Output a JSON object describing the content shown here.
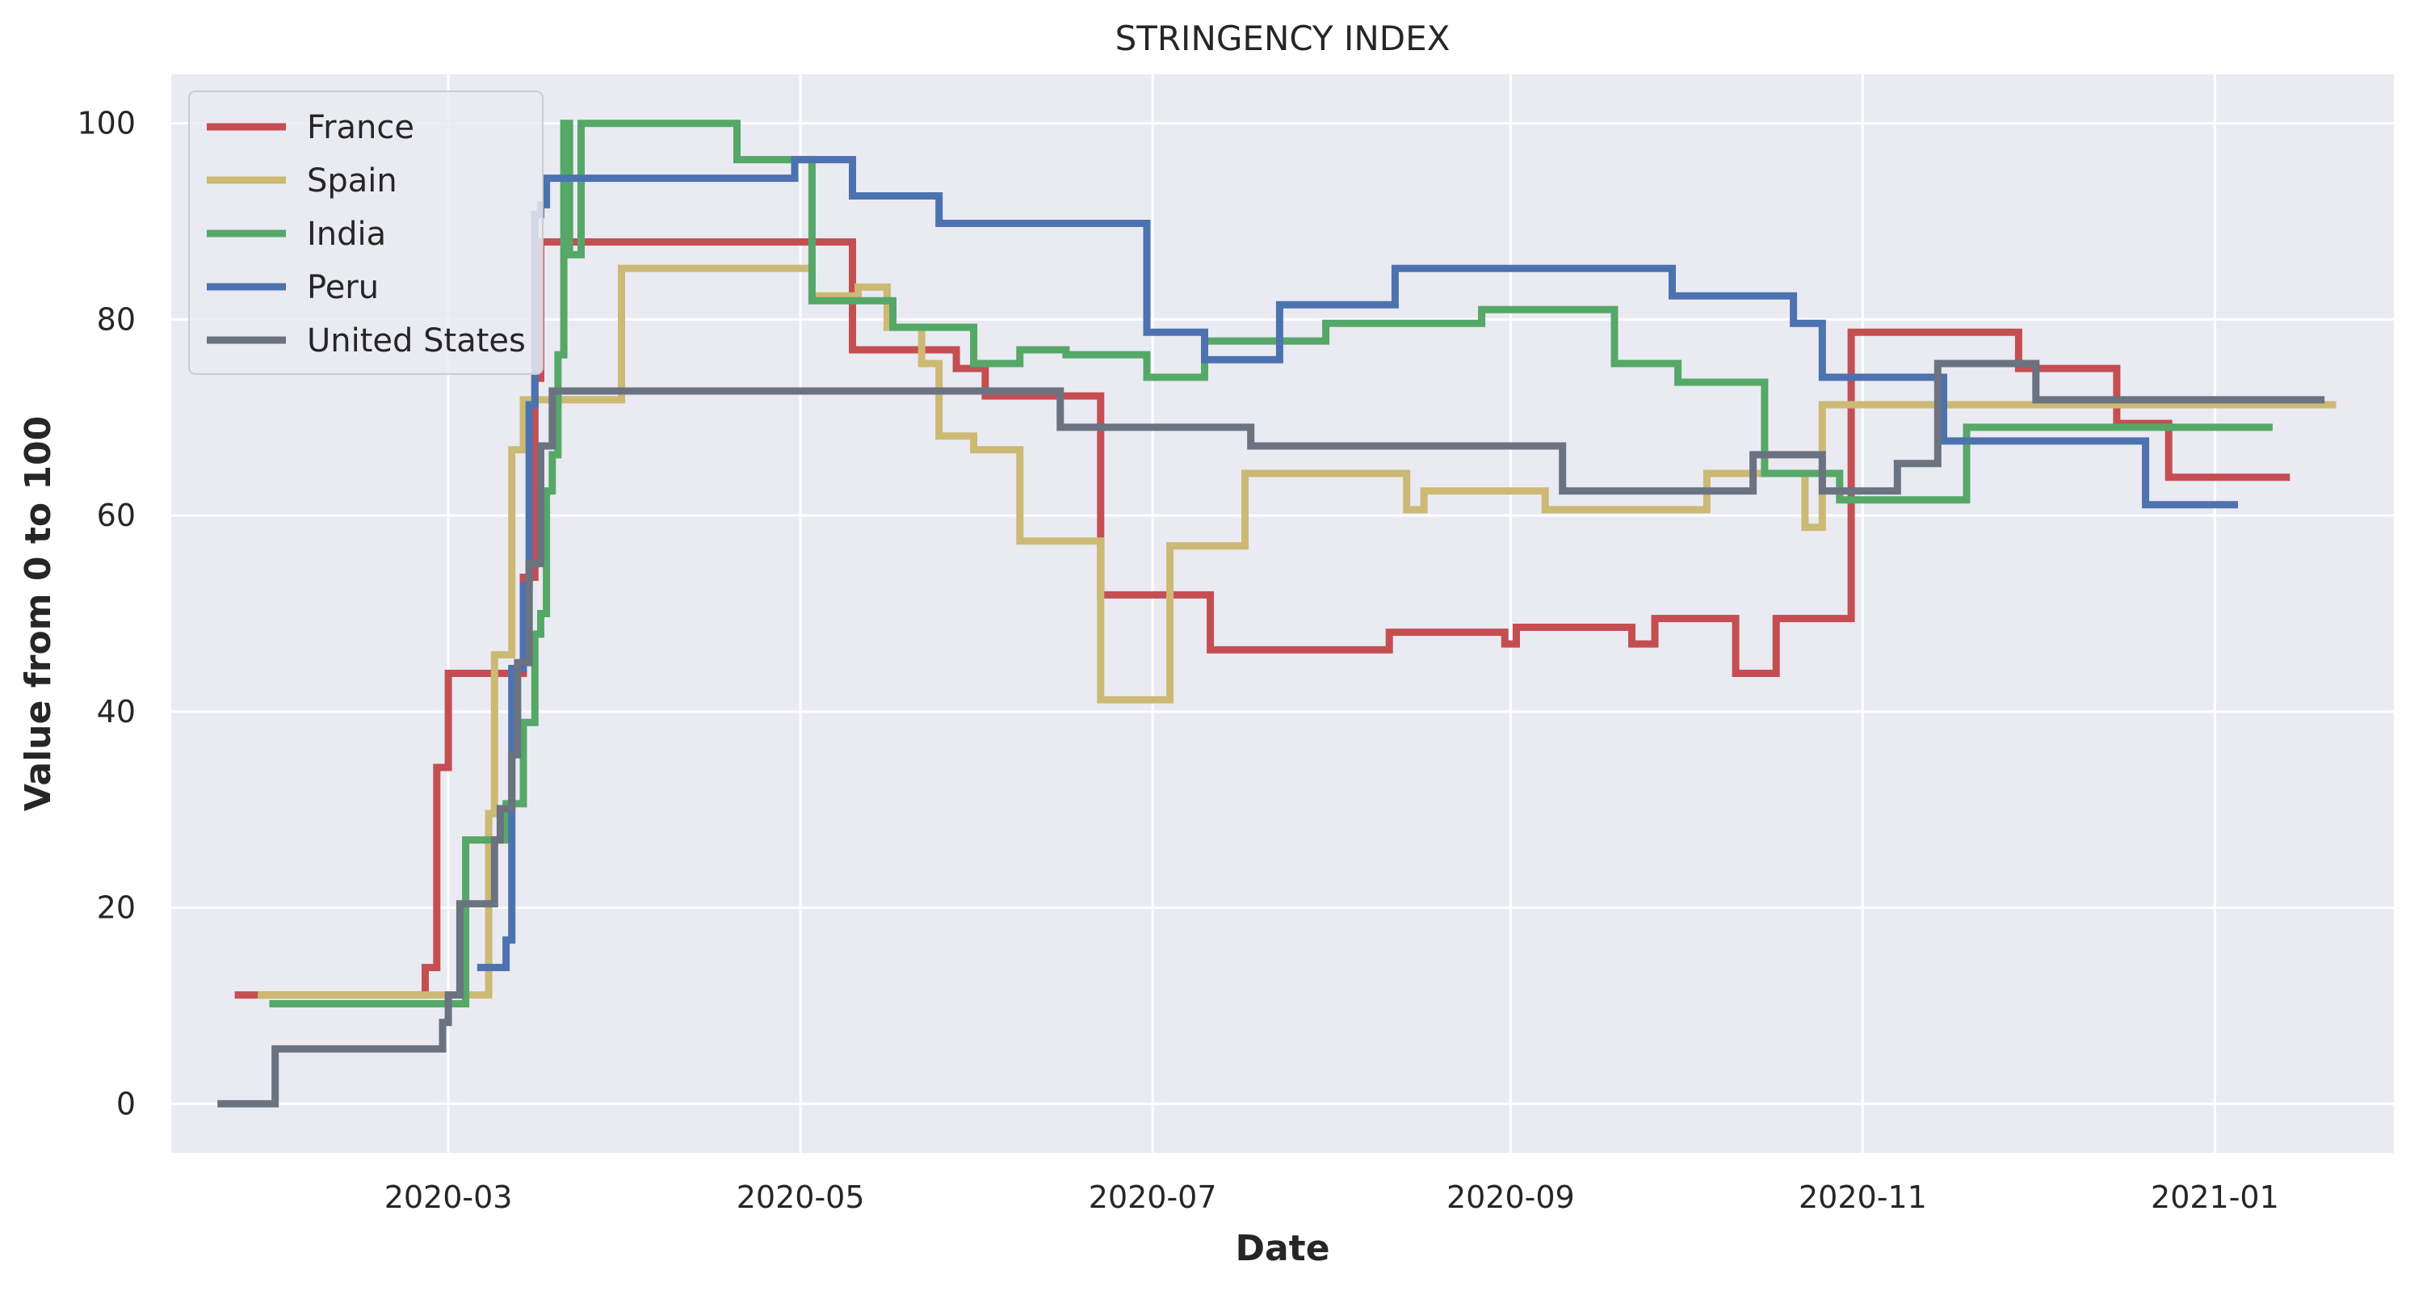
{
  "chart_data": {
    "type": "line",
    "title": "STRINGENCY INDEX",
    "xlabel": "Date",
    "ylabel": "Value from 0 to 100",
    "xlim": [
      "2020-01-13",
      "2021-02-01"
    ],
    "ylim": [
      -5,
      105
    ],
    "x_ticks": [
      "2020-03",
      "2020-05",
      "2020-07",
      "2020-09",
      "2020-11",
      "2021-01"
    ],
    "y_ticks": [
      0,
      20,
      40,
      60,
      80,
      100
    ],
    "grid": true,
    "legend_position": "top-left",
    "series": [
      {
        "name": "France",
        "color": "#c44e52",
        "points": [
          [
            "2020-01-24",
            11.1
          ],
          [
            "2020-02-26",
            11.1
          ],
          [
            "2020-02-26",
            13.9
          ],
          [
            "2020-02-28",
            13.9
          ],
          [
            "2020-02-28",
            34.3
          ],
          [
            "2020-03-01",
            34.3
          ],
          [
            "2020-03-01",
            43.9
          ],
          [
            "2020-03-14",
            43.9
          ],
          [
            "2020-03-14",
            53.7
          ],
          [
            "2020-03-16",
            53.7
          ],
          [
            "2020-03-16",
            74.0
          ],
          [
            "2020-03-17",
            74.0
          ],
          [
            "2020-03-17",
            87.9
          ],
          [
            "2020-05-10",
            87.9
          ],
          [
            "2020-05-10",
            76.9
          ],
          [
            "2020-05-28",
            76.9
          ],
          [
            "2020-05-28",
            75.0
          ],
          [
            "2020-06-02",
            75.0
          ],
          [
            "2020-06-02",
            72.2
          ],
          [
            "2020-06-22",
            72.2
          ],
          [
            "2020-06-22",
            51.9
          ],
          [
            "2020-07-11",
            51.9
          ],
          [
            "2020-07-11",
            46.3
          ],
          [
            "2020-08-11",
            46.3
          ],
          [
            "2020-08-11",
            48.1
          ],
          [
            "2020-08-31",
            48.1
          ],
          [
            "2020-08-31",
            46.9
          ],
          [
            "2020-09-02",
            46.9
          ],
          [
            "2020-09-02",
            48.6
          ],
          [
            "2020-09-22",
            48.6
          ],
          [
            "2020-09-22",
            46.9
          ],
          [
            "2020-09-26",
            46.9
          ],
          [
            "2020-09-26",
            49.5
          ],
          [
            "2020-10-10",
            49.5
          ],
          [
            "2020-10-10",
            43.9
          ],
          [
            "2020-10-17",
            43.9
          ],
          [
            "2020-10-17",
            49.5
          ],
          [
            "2020-10-30",
            49.5
          ],
          [
            "2020-10-30",
            78.7
          ],
          [
            "2020-11-28",
            78.7
          ],
          [
            "2020-11-28",
            75.0
          ],
          [
            "2020-12-15",
            75.0
          ],
          [
            "2020-12-15",
            69.4
          ],
          [
            "2020-12-24",
            69.4
          ],
          [
            "2020-12-24",
            63.9
          ],
          [
            "2021-01-14",
            63.9
          ]
        ]
      },
      {
        "name": "Spain",
        "color": "#ccb974",
        "points": [
          [
            "2020-01-28",
            11.1
          ],
          [
            "2020-03-08",
            11.1
          ],
          [
            "2020-03-08",
            29.6
          ],
          [
            "2020-03-09",
            29.6
          ],
          [
            "2020-03-09",
            45.8
          ],
          [
            "2020-03-12",
            45.8
          ],
          [
            "2020-03-12",
            66.7
          ],
          [
            "2020-03-14",
            66.7
          ],
          [
            "2020-03-14",
            71.8
          ],
          [
            "2020-03-31",
            71.8
          ],
          [
            "2020-03-31",
            85.2
          ],
          [
            "2020-05-03",
            85.2
          ],
          [
            "2020-05-03",
            82.4
          ],
          [
            "2020-05-11",
            82.4
          ],
          [
            "2020-05-11",
            83.3
          ],
          [
            "2020-05-16",
            83.3
          ],
          [
            "2020-05-16",
            79.2
          ],
          [
            "2020-05-22",
            79.2
          ],
          [
            "2020-05-22",
            75.5
          ],
          [
            "2020-05-25",
            75.5
          ],
          [
            "2020-05-25",
            68.1
          ],
          [
            "2020-05-31",
            68.1
          ],
          [
            "2020-05-31",
            66.7
          ],
          [
            "2020-06-08",
            66.7
          ],
          [
            "2020-06-08",
            57.4
          ],
          [
            "2020-06-22",
            57.4
          ],
          [
            "2020-06-22",
            41.2
          ],
          [
            "2020-07-04",
            41.2
          ],
          [
            "2020-07-04",
            56.9
          ],
          [
            "2020-07-17",
            56.9
          ],
          [
            "2020-07-17",
            64.3
          ],
          [
            "2020-08-14",
            64.3
          ],
          [
            "2020-08-14",
            60.6
          ],
          [
            "2020-08-17",
            60.6
          ],
          [
            "2020-08-17",
            62.5
          ],
          [
            "2020-09-07",
            62.5
          ],
          [
            "2020-09-07",
            60.6
          ],
          [
            "2020-10-05",
            60.6
          ],
          [
            "2020-10-05",
            64.3
          ],
          [
            "2020-10-22",
            64.3
          ],
          [
            "2020-10-22",
            58.8
          ],
          [
            "2020-10-25",
            58.8
          ],
          [
            "2020-10-25",
            71.3
          ],
          [
            "2021-01-22",
            71.3
          ]
        ]
      },
      {
        "name": "India",
        "color": "#55a868",
        "points": [
          [
            "2020-01-30",
            10.2
          ],
          [
            "2020-03-04",
            10.2
          ],
          [
            "2020-03-04",
            26.9
          ],
          [
            "2020-03-11",
            26.9
          ],
          [
            "2020-03-11",
            30.6
          ],
          [
            "2020-03-14",
            30.6
          ],
          [
            "2020-03-14",
            38.9
          ],
          [
            "2020-03-16",
            38.9
          ],
          [
            "2020-03-16",
            47.9
          ],
          [
            "2020-03-17",
            47.9
          ],
          [
            "2020-03-17",
            50.0
          ],
          [
            "2020-03-18",
            50.0
          ],
          [
            "2020-03-18",
            62.5
          ],
          [
            "2020-03-19",
            62.5
          ],
          [
            "2020-03-19",
            66.2
          ],
          [
            "2020-03-20",
            66.2
          ],
          [
            "2020-03-20",
            76.4
          ],
          [
            "2020-03-21",
            76.4
          ],
          [
            "2020-03-21",
            100.0
          ],
          [
            "2020-03-22",
            100.0
          ],
          [
            "2020-03-22",
            86.6
          ],
          [
            "2020-03-24",
            86.6
          ],
          [
            "2020-03-24",
            100.0
          ],
          [
            "2020-04-20",
            100.0
          ],
          [
            "2020-04-20",
            96.3
          ],
          [
            "2020-05-03",
            96.3
          ],
          [
            "2020-05-03",
            81.9
          ],
          [
            "2020-05-17",
            81.9
          ],
          [
            "2020-05-17",
            79.2
          ],
          [
            "2020-05-31",
            79.2
          ],
          [
            "2020-05-31",
            75.5
          ],
          [
            "2020-06-08",
            75.5
          ],
          [
            "2020-06-08",
            76.9
          ],
          [
            "2020-06-16",
            76.9
          ],
          [
            "2020-06-16",
            76.4
          ],
          [
            "2020-06-30",
            76.4
          ],
          [
            "2020-06-30",
            74.1
          ],
          [
            "2020-07-10",
            74.1
          ],
          [
            "2020-07-10",
            77.8
          ],
          [
            "2020-07-31",
            77.8
          ],
          [
            "2020-07-31",
            79.6
          ],
          [
            "2020-08-27",
            79.6
          ],
          [
            "2020-08-27",
            81.0
          ],
          [
            "2020-09-19",
            81.0
          ],
          [
            "2020-09-19",
            75.5
          ],
          [
            "2020-09-30",
            75.5
          ],
          [
            "2020-09-30",
            73.6
          ],
          [
            "2020-10-15",
            73.6
          ],
          [
            "2020-10-15",
            64.3
          ],
          [
            "2020-10-28",
            64.3
          ],
          [
            "2020-10-28",
            61.6
          ],
          [
            "2020-11-19",
            61.6
          ],
          [
            "2020-11-19",
            69.0
          ],
          [
            "2021-01-11",
            69.0
          ]
        ]
      },
      {
        "name": "Peru",
        "color": "#4c72b0",
        "points": [
          [
            "2020-03-06",
            13.9
          ],
          [
            "2020-03-11",
            13.9
          ],
          [
            "2020-03-11",
            16.7
          ],
          [
            "2020-03-12",
            16.7
          ],
          [
            "2020-03-12",
            44.4
          ],
          [
            "2020-03-14",
            44.4
          ],
          [
            "2020-03-14",
            52.8
          ],
          [
            "2020-03-15",
            52.8
          ],
          [
            "2020-03-15",
            71.3
          ],
          [
            "2020-03-16",
            71.3
          ],
          [
            "2020-03-16",
            90.7
          ],
          [
            "2020-03-17",
            90.7
          ],
          [
            "2020-03-17",
            91.7
          ],
          [
            "2020-03-18",
            91.7
          ],
          [
            "2020-03-18",
            94.4
          ],
          [
            "2020-04-30",
            94.4
          ],
          [
            "2020-04-30",
            96.3
          ],
          [
            "2020-05-10",
            96.3
          ],
          [
            "2020-05-10",
            92.6
          ],
          [
            "2020-05-25",
            92.6
          ],
          [
            "2020-05-25",
            89.8
          ],
          [
            "2020-06-30",
            89.8
          ],
          [
            "2020-06-30",
            78.7
          ],
          [
            "2020-07-10",
            78.7
          ],
          [
            "2020-07-10",
            75.9
          ],
          [
            "2020-07-23",
            75.9
          ],
          [
            "2020-07-23",
            81.5
          ],
          [
            "2020-08-12",
            81.5
          ],
          [
            "2020-08-12",
            85.2
          ],
          [
            "2020-09-29",
            85.2
          ],
          [
            "2020-09-29",
            82.4
          ],
          [
            "2020-10-20",
            82.4
          ],
          [
            "2020-10-20",
            79.6
          ],
          [
            "2020-10-25",
            79.6
          ],
          [
            "2020-10-25",
            74.1
          ],
          [
            "2020-11-15",
            74.1
          ],
          [
            "2020-11-15",
            67.6
          ],
          [
            "2020-12-20",
            67.6
          ],
          [
            "2020-12-20",
            61.1
          ],
          [
            "2021-01-05",
            61.1
          ]
        ]
      },
      {
        "name": "United States",
        "color": "#6b7280",
        "points": [
          [
            "2020-01-21",
            0.0
          ],
          [
            "2020-01-31",
            0.0
          ],
          [
            "2020-01-31",
            5.6
          ],
          [
            "2020-02-29",
            5.6
          ],
          [
            "2020-02-29",
            8.3
          ],
          [
            "2020-03-01",
            8.3
          ],
          [
            "2020-03-01",
            11.1
          ],
          [
            "2020-03-03",
            11.1
          ],
          [
            "2020-03-03",
            20.4
          ],
          [
            "2020-03-09",
            20.4
          ],
          [
            "2020-03-09",
            26.9
          ],
          [
            "2020-03-10",
            26.9
          ],
          [
            "2020-03-10",
            30.1
          ],
          [
            "2020-03-12",
            30.1
          ],
          [
            "2020-03-12",
            35.6
          ],
          [
            "2020-03-13",
            35.6
          ],
          [
            "2020-03-13",
            45.0
          ],
          [
            "2020-03-15",
            45.0
          ],
          [
            "2020-03-15",
            55.1
          ],
          [
            "2020-03-17",
            55.1
          ],
          [
            "2020-03-17",
            67.1
          ],
          [
            "2020-03-19",
            67.1
          ],
          [
            "2020-03-19",
            72.7
          ],
          [
            "2020-06-15",
            72.7
          ],
          [
            "2020-06-15",
            69.0
          ],
          [
            "2020-07-18",
            69.0
          ],
          [
            "2020-07-18",
            67.1
          ],
          [
            "2020-09-10",
            67.1
          ],
          [
            "2020-09-10",
            62.5
          ],
          [
            "2020-10-13",
            62.5
          ],
          [
            "2020-10-13",
            66.2
          ],
          [
            "2020-10-25",
            66.2
          ],
          [
            "2020-10-25",
            62.5
          ],
          [
            "2020-11-07",
            62.5
          ],
          [
            "2020-11-07",
            65.3
          ],
          [
            "2020-11-14",
            65.3
          ],
          [
            "2020-11-14",
            75.5
          ],
          [
            "2020-12-01",
            75.5
          ],
          [
            "2020-12-01",
            71.8
          ],
          [
            "2021-01-20",
            71.8
          ]
        ]
      }
    ]
  }
}
